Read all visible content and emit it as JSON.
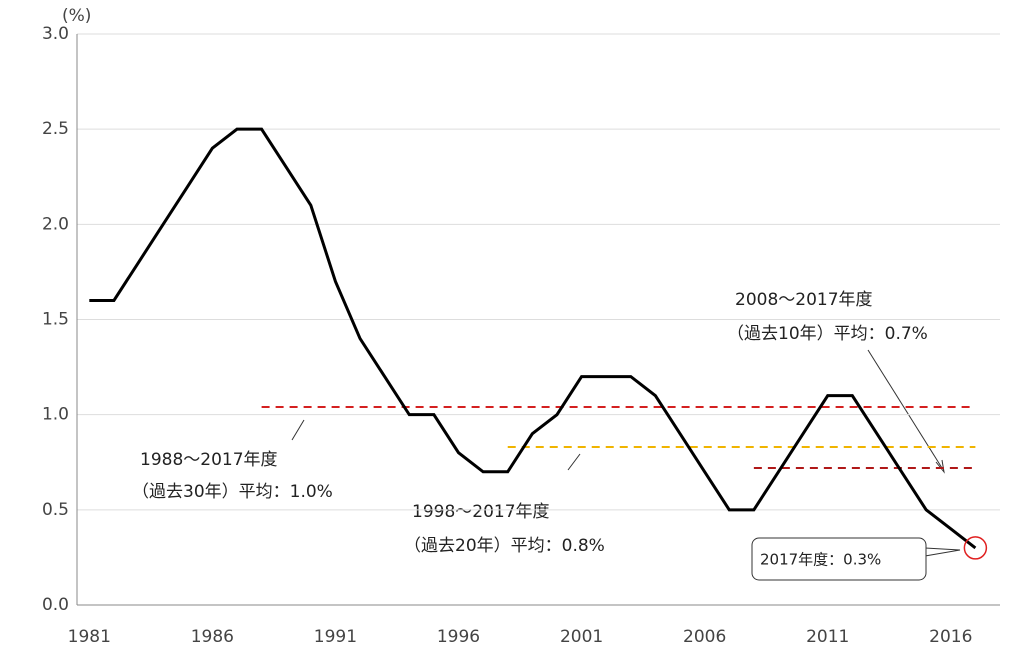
{
  "chart_data": {
    "type": "line",
    "y_unit": "(%)",
    "x": [
      1981,
      1982,
      1983,
      1984,
      1985,
      1986,
      1987,
      1988,
      1989,
      1990,
      1991,
      1992,
      1993,
      1994,
      1995,
      1996,
      1997,
      1998,
      1999,
      2000,
      2001,
      2002,
      2003,
      2004,
      2005,
      2006,
      2007,
      2008,
      2009,
      2010,
      2011,
      2012,
      2013,
      2014,
      2015,
      2016,
      2017
    ],
    "series": [
      {
        "color": "#000000",
        "values": [
          1.6,
          1.6,
          1.8,
          2.0,
          2.2,
          2.4,
          2.5,
          2.5,
          2.3,
          2.1,
          1.7,
          1.4,
          1.2,
          1.0,
          1.0,
          0.8,
          0.7,
          0.7,
          0.9,
          1.0,
          1.2,
          1.2,
          1.2,
          1.1,
          0.9,
          0.7,
          0.5,
          0.5,
          0.7,
          0.9,
          1.1,
          1.1,
          0.9,
          0.7,
          0.5,
          0.4,
          0.3
        ]
      }
    ],
    "xlim": [
      1980.5,
      2018
    ],
    "xticks": [
      1981,
      1986,
      1991,
      1996,
      2001,
      2006,
      2011,
      2016
    ],
    "ylim": [
      0,
      3
    ],
    "yticks": [
      {
        "value": 0,
        "label": "0.0"
      },
      0.5,
      {
        "value": 1,
        "label": "1.0"
      },
      1.5,
      {
        "value": 2,
        "label": "2.0"
      },
      2.5,
      {
        "value": 3,
        "label": "3.0"
      }
    ],
    "grid": true,
    "averages": [
      {
        "line1": "1988～2017年度",
        "line2": "（過去30年）平均：1.0%",
        "value": 1.04,
        "from": 1988,
        "to": 2017,
        "color": "#d42020"
      },
      {
        "line1": "1998～2017年度",
        "line2": "（過去20年）平均：0.8%",
        "value": 0.83,
        "from": 1998,
        "to": 2017,
        "color": "#f0b400"
      },
      {
        "line1": "2008～2017年度",
        "line2": "（過去10年）平均：0.7%",
        "value": 0.72,
        "from": 2008,
        "to": 2017,
        "color": "#b01818"
      }
    ],
    "callout": "2017年度：0.3%"
  }
}
